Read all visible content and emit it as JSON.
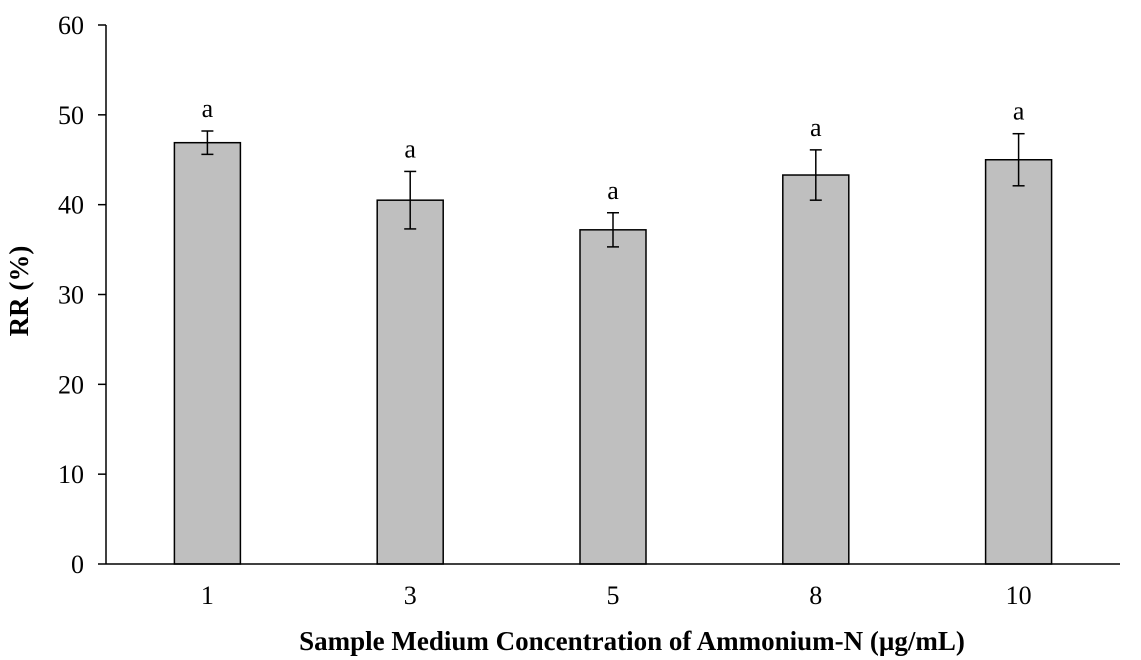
{
  "chart_data": {
    "type": "bar",
    "title": "",
    "xlabel": "Sample Medium Concentration of Ammonium-N (µg/mL)",
    "ylabel": "RR (%)",
    "categories": [
      "1",
      "3",
      "5",
      "8",
      "10"
    ],
    "values": [
      46.9,
      40.5,
      37.2,
      43.3,
      45.0
    ],
    "error": [
      1.3,
      3.2,
      1.9,
      2.8,
      2.9
    ],
    "annotations": [
      "a",
      "a",
      "a",
      "a",
      "a"
    ],
    "ylim": [
      0,
      60
    ],
    "yticks": [
      0,
      10,
      20,
      30,
      40,
      50,
      60
    ],
    "grid": false,
    "legend": "none",
    "colors": {
      "bar_fill": "#bfbfbf",
      "bar_stroke": "#000000",
      "axis": "#000000"
    }
  }
}
